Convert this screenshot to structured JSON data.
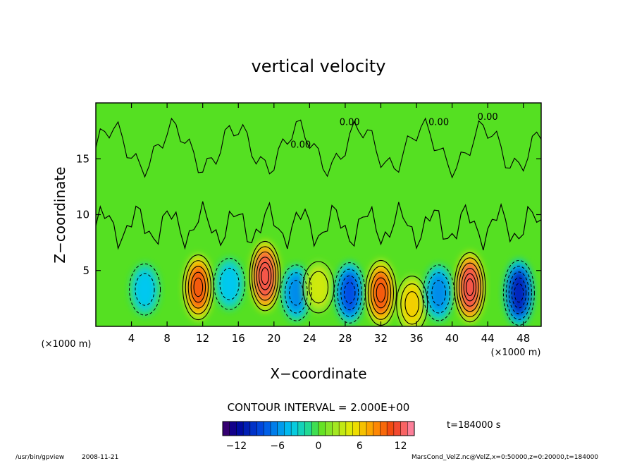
{
  "chart_data": {
    "type": "heatmap",
    "title": "vertical velocity",
    "xlabel": "X−coordinate",
    "ylabel": "Z−coordinate",
    "x_unit_left": "(×1000 m)",
    "x_unit_right": "(×1000 m)",
    "xlim": [
      0,
      50
    ],
    "ylim": [
      0,
      20
    ],
    "x_ticks": [
      4,
      8,
      12,
      16,
      20,
      24,
      28,
      32,
      36,
      40,
      44,
      48
    ],
    "y_ticks": [
      5,
      10,
      15
    ],
    "contour_interval": "CONTOUR INTERVAL = 2.000E+00",
    "contour_labels": [
      "0.00",
      "0.00",
      "0.00",
      "0.00"
    ],
    "time_label": "t=184000 s",
    "colorbar": {
      "min": -14,
      "max": 14,
      "ticks": [
        -12,
        -6,
        0,
        6,
        12
      ],
      "tick_labels": [
        "−12",
        "−6",
        "0",
        "6",
        "12"
      ]
    },
    "cells": [
      {
        "x": 5.5,
        "z": 3.3,
        "w": -4
      },
      {
        "x": 11.5,
        "z": 3.5,
        "w": 10
      },
      {
        "x": 15.0,
        "z": 3.8,
        "w": -4
      },
      {
        "x": 19.0,
        "z": 4.5,
        "w": 12
      },
      {
        "x": 22.5,
        "z": 3.0,
        "w": -6
      },
      {
        "x": 25.0,
        "z": 3.5,
        "w": 4
      },
      {
        "x": 28.5,
        "z": 3.0,
        "w": -8
      },
      {
        "x": 32.0,
        "z": 3.0,
        "w": 10
      },
      {
        "x": 35.5,
        "z": 2.0,
        "w": 6
      },
      {
        "x": 38.5,
        "z": 3.0,
        "w": -6
      },
      {
        "x": 42.0,
        "z": 3.5,
        "w": 12
      },
      {
        "x": 47.5,
        "z": 3.0,
        "w": -10
      }
    ]
  },
  "footer": {
    "program": "/usr/bin/gpview",
    "date": "2008-11-21",
    "source": "MarsCond_VelZ.nc@VelZ,x=0:50000,z=0:20000,t=184000"
  }
}
